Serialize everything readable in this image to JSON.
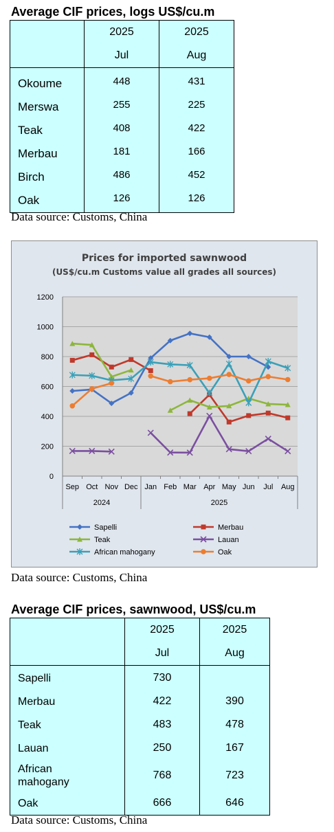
{
  "logs": {
    "title": "Average CIF prices, logs US$/cu.m",
    "header": {
      "col1_year": "2025",
      "col1_month": "Jul",
      "col2_year": "2025",
      "col2_month": "Aug"
    },
    "rows": [
      {
        "name": "Okoume",
        "jul": "448",
        "aug": "431"
      },
      {
        "name": "Merswa",
        "jul": "255",
        "aug": "225"
      },
      {
        "name": "Teak",
        "jul": "408",
        "aug": "422"
      },
      {
        "name": "Merbau",
        "jul": "181",
        "aug": "166"
      },
      {
        "name": "Birch",
        "jul": "486",
        "aug": "452"
      },
      {
        "name": "Oak",
        "jul": "126",
        "aug": "126"
      }
    ],
    "source": "Data source: Customs, China"
  },
  "chart_source": "Data source: Customs, China",
  "chart_data": {
    "type": "line",
    "title": "Prices for imported sawnwood",
    "subtitle": "(US$/cu.m Customs value all grades all sources)",
    "categories": [
      "Sep",
      "Oct",
      "Nov",
      "Dec",
      "Jan",
      "Feb",
      "Mar",
      "Apr",
      "May",
      "Jun",
      "Jul",
      "Aug"
    ],
    "year_groups": [
      {
        "label": "2024",
        "from": 0,
        "to": 3
      },
      {
        "label": "2025",
        "from": 4,
        "to": 11
      }
    ],
    "ylim": [
      0,
      1200
    ],
    "yticks": [
      "0",
      "200",
      "400",
      "600",
      "800",
      "1000",
      "1200"
    ],
    "grid": true,
    "legend_position": "bottom",
    "series": [
      {
        "name": "Sapelli",
        "color": "#4472c4",
        "marker": "diamond",
        "values": [
          570,
          580,
          487,
          557,
          790,
          907,
          955,
          930,
          800,
          800,
          730,
          null
        ]
      },
      {
        "name": "Merbau",
        "color": "#c0392b",
        "marker": "square",
        "values": [
          775,
          812,
          730,
          780,
          706,
          null,
          418,
          545,
          362,
          405,
          422,
          390
        ]
      },
      {
        "name": "Teak",
        "color": "#8db63c",
        "marker": "triangle",
        "values": [
          887,
          878,
          665,
          710,
          null,
          440,
          508,
          462,
          470,
          520,
          483,
          478
        ]
      },
      {
        "name": "Lauan",
        "color": "#7b4fa0",
        "marker": "x",
        "values": [
          168,
          168,
          164,
          null,
          290,
          158,
          157,
          403,
          180,
          167,
          250,
          167
        ]
      },
      {
        "name": "African mahogany",
        "color": "#3aa0b8",
        "marker": "star",
        "values": [
          677,
          672,
          641,
          652,
          763,
          748,
          742,
          555,
          752,
          490,
          768,
          723
        ]
      },
      {
        "name": "Oak",
        "color": "#ed7d31",
        "marker": "circle",
        "values": [
          470,
          585,
          622,
          null,
          670,
          632,
          645,
          655,
          680,
          637,
          666,
          646
        ]
      }
    ]
  },
  "sawn": {
    "title": "Average CIF prices, sawnwood, US$/cu.m",
    "header": {
      "col1_year": "2025",
      "col1_month": "Jul",
      "col2_year": "2025",
      "col2_month": "Aug"
    },
    "rows": [
      {
        "name": "Sapelli",
        "jul": "730",
        "aug": ""
      },
      {
        "name": "Merbau",
        "jul": "422",
        "aug": "390"
      },
      {
        "name": "Teak",
        "jul": "483",
        "aug": "478"
      },
      {
        "name": "Lauan",
        "jul": "250",
        "aug": "167"
      },
      {
        "name": "African mahogany",
        "jul": "768",
        "aug": "723"
      },
      {
        "name": "Oak",
        "jul": "666",
        "aug": "646"
      }
    ],
    "source": "Data source: Customs, China"
  }
}
